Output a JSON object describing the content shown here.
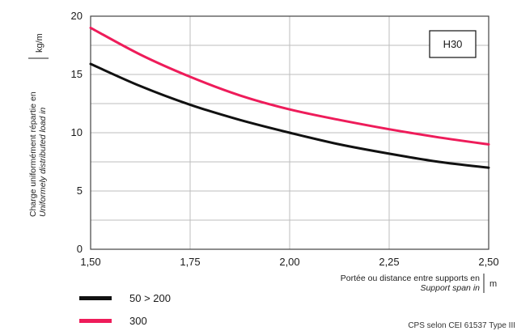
{
  "chart_data": {
    "type": "line",
    "badge": "H30",
    "xlabel": "Portée ou distance entre supports en",
    "xlabel_en": "Support span in",
    "xunit": "m",
    "ylabel": "Charge uniformément répartie en",
    "ylabel_en": "Uniformely distributed load in",
    "yunit": "kg/m",
    "xlim": [
      1.5,
      2.5
    ],
    "ylim": [
      0,
      20
    ],
    "xticks": [
      1.5,
      1.75,
      2.0,
      2.25,
      2.5
    ],
    "xtick_labels": [
      "1,50",
      "1,75",
      "2,00",
      "2,25",
      "2,50"
    ],
    "yticks": [
      0,
      5,
      10,
      15,
      20
    ],
    "ytick_labels": [
      "0",
      "5",
      "10",
      "15",
      "20"
    ],
    "grid": true,
    "legend_position": "bottom-left",
    "x": [
      1.5,
      1.625,
      1.75,
      1.875,
      2.0,
      2.125,
      2.25,
      2.375,
      2.5
    ],
    "series": [
      {
        "name": "50 > 200",
        "color": "#111111",
        "values": [
          15.9,
          14.0,
          12.4,
          11.1,
          10.0,
          9.0,
          8.2,
          7.5,
          7.0
        ]
      },
      {
        "name": "300",
        "color": "#ee1c5a",
        "values": [
          19.0,
          16.7,
          14.8,
          13.2,
          12.0,
          11.1,
          10.3,
          9.6,
          9.0
        ]
      }
    ],
    "footnote": "CPS selon CEI 61537 Type III"
  }
}
